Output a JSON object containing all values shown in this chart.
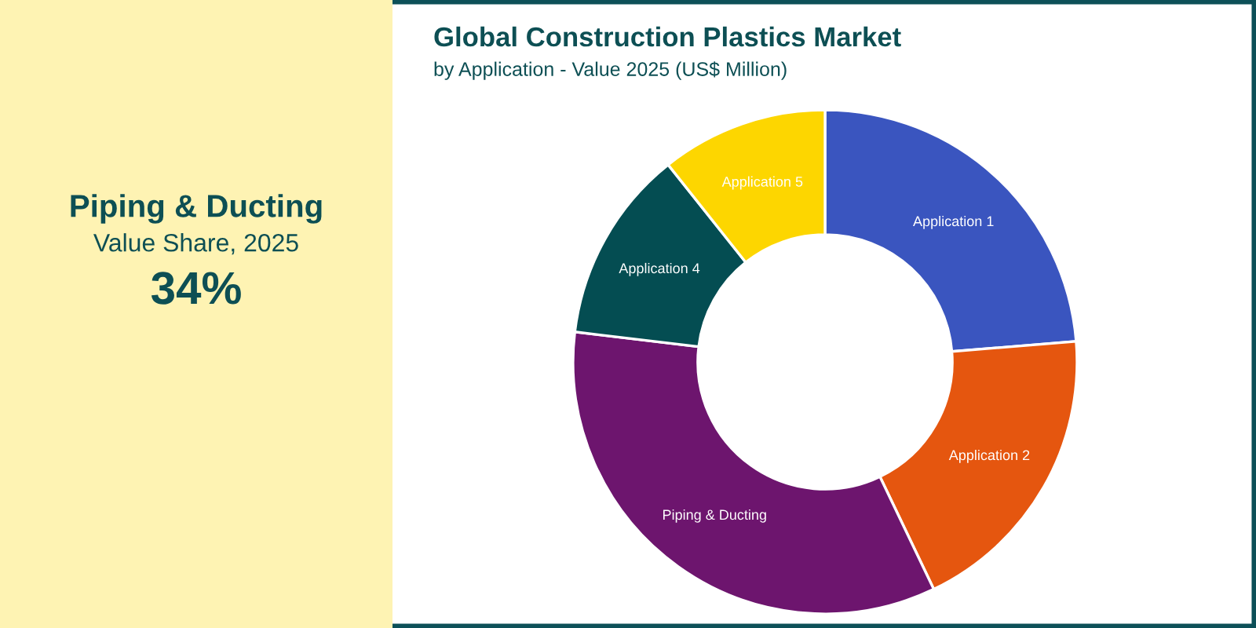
{
  "chart_data": [
    {
      "type": "other",
      "title": "Piping & Ducting",
      "subtitle": "Value Share, 2025",
      "annotations": [
        "34%"
      ]
    },
    {
      "type": "donut",
      "title": "Global Construction Plastics Market",
      "subtitle": "by Application - Value 2025 (US$ Million)",
      "categories": [
        "Application 1",
        "Application 2",
        "Piping & Ducting",
        "Application 4",
        "Application 5"
      ],
      "values": [
        23.7,
        19.2,
        34,
        12.4,
        10.7
      ],
      "colors": [
        "#3a55bf",
        "#e5560f",
        "#6d156e",
        "#044d52",
        "#fdd600"
      ]
    }
  ]
}
